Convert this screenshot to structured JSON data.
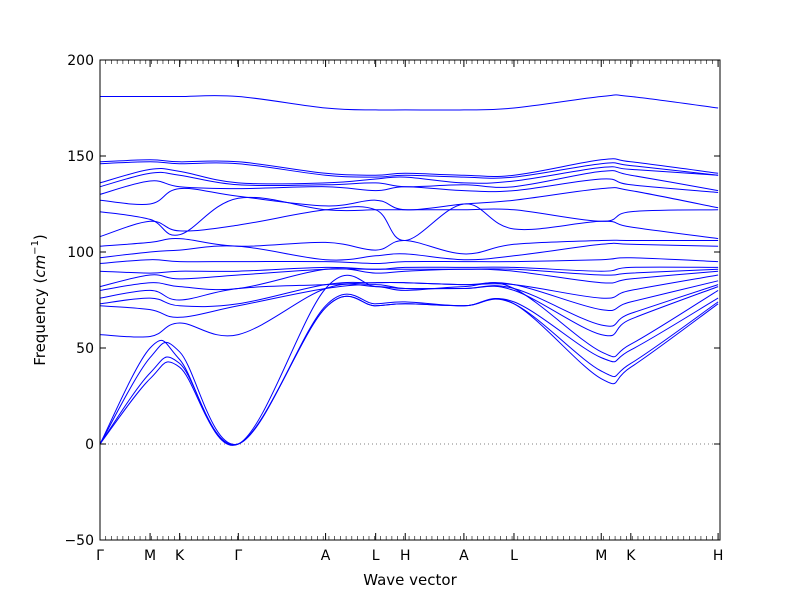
{
  "chart_data": {
    "type": "line",
    "title": "",
    "xlabel": "Wave vector",
    "ylabel": "Frequency",
    "ylabel_unit": "cm",
    "ylabel_unit_exp": "−1",
    "ylim": [
      -50,
      200
    ],
    "yticks": [
      -50,
      0,
      50,
      100,
      150,
      200
    ],
    "grid": false,
    "legend": "none",
    "line_color": "#0000ff",
    "zero_line": {
      "value": 0,
      "color": "#808080",
      "style": "dotted"
    },
    "xlim": [
      0,
      13.0
    ],
    "path_points": [
      {
        "label": "Γ",
        "x": 0.0
      },
      {
        "label": "M",
        "x": 1.05
      },
      {
        "label": "K",
        "x": 1.67
      },
      {
        "label": "Γ",
        "x": 2.9
      },
      {
        "label": "A",
        "x": 4.73
      },
      {
        "label": "L",
        "x": 5.78
      },
      {
        "label": "H",
        "x": 6.4
      },
      {
        "label": "A",
        "x": 7.63
      },
      {
        "label": "L",
        "x": 8.68
      },
      {
        "label": "M",
        "x": 10.51
      },
      {
        "label": "K",
        "x": 11.13
      },
      {
        "label": "H",
        "x": 12.96
      }
    ],
    "series": [
      {
        "values": [
          0,
          34,
          40,
          0,
          71,
          72,
          73,
          72,
          73,
          34,
          40,
          73
        ]
      },
      {
        "values": [
          0,
          37,
          42,
          0,
          71,
          72,
          73,
          72,
          73,
          38,
          42,
          74
        ]
      },
      {
        "values": [
          0,
          45,
          48,
          0,
          72,
          73,
          74,
          72,
          74,
          45,
          49,
          76
        ]
      },
      {
        "values": [
          0,
          50,
          44,
          0,
          81,
          82,
          80,
          82,
          81,
          48,
          52,
          80
        ]
      },
      {
        "values": [
          57,
          56,
          63,
          57,
          81,
          82,
          81,
          81,
          80,
          57,
          65,
          82
        ]
      },
      {
        "values": [
          72,
          70,
          66,
          72,
          81,
          83,
          81,
          81,
          81,
          62,
          68,
          83
        ]
      },
      {
        "values": [
          73,
          76,
          72,
          73,
          83,
          84,
          84,
          83,
          83,
          70,
          74,
          85
        ]
      },
      {
        "values": [
          76,
          80,
          75,
          81,
          83,
          84,
          84,
          83,
          83,
          76,
          80,
          88
        ]
      },
      {
        "values": [
          80,
          84,
          82,
          81,
          91,
          89,
          90,
          91,
          90,
          84,
          86,
          90
        ]
      },
      {
        "values": [
          82,
          88,
          86,
          88,
          91,
          91,
          91,
          91,
          91,
          88,
          89,
          91
        ]
      },
      {
        "values": [
          90,
          89,
          90,
          90,
          92,
          91,
          92,
          92,
          92,
          90,
          92,
          92
        ]
      },
      {
        "values": [
          94,
          96,
          95,
          95,
          95,
          94,
          95,
          95,
          95,
          96,
          97,
          95
        ]
      },
      {
        "values": [
          97,
          100,
          101,
          103,
          96,
          98,
          99,
          96,
          98,
          104,
          104,
          103
        ]
      },
      {
        "values": [
          103,
          105,
          107,
          103,
          105,
          101,
          106,
          99,
          104,
          106,
          106,
          106
        ]
      },
      {
        "values": [
          108,
          116,
          111,
          114,
          122,
          122,
          106,
          125,
          112,
          116,
          113,
          107
        ]
      },
      {
        "values": [
          121,
          117,
          109,
          128,
          122,
          122,
          122,
          122,
          122,
          116,
          121,
          122
        ]
      },
      {
        "values": [
          127,
          125,
          133,
          129,
          124,
          127,
          122,
          125,
          127,
          133,
          132,
          123
        ]
      },
      {
        "values": [
          130,
          137,
          134,
          133,
          134,
          132,
          134,
          132,
          132,
          138,
          135,
          131
        ]
      },
      {
        "values": [
          134,
          141,
          140,
          135,
          135,
          136,
          134,
          135,
          134,
          142,
          140,
          132
        ]
      },
      {
        "values": [
          136,
          143,
          142,
          136,
          136,
          138,
          139,
          136,
          137,
          144,
          143,
          140
        ]
      },
      {
        "values": [
          146,
          147,
          146,
          146,
          140,
          139,
          140,
          139,
          139,
          146,
          145,
          140
        ]
      },
      {
        "values": [
          147,
          148,
          147,
          147,
          141,
          140,
          141,
          140,
          140,
          148,
          147,
          141
        ]
      },
      {
        "values": [
          181,
          181,
          181,
          181,
          175,
          174,
          174,
          174,
          175,
          181,
          181,
          175
        ]
      }
    ]
  }
}
